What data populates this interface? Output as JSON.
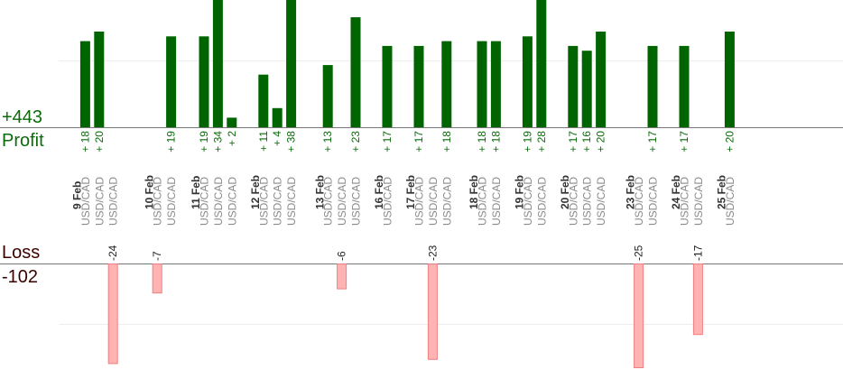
{
  "summary": {
    "profit_total": "+443",
    "profit_label": "Profit",
    "loss_label": "Loss",
    "loss_total": "-102"
  },
  "colors": {
    "profit_bar": "#006400",
    "profit_text": "#0b6b0b",
    "loss_bar_fill": "#ffb3b3",
    "loss_bar_stroke": "#f08080",
    "date_text": "#333333",
    "pair_text": "#8a8a8a",
    "grid": "#eeeeee",
    "axis": "#777777"
  },
  "chart_data": {
    "type": "bar",
    "pair": "USD/CAD",
    "days": [
      {
        "date": "9 Feb",
        "trades": [
          {
            "v": 18
          },
          {
            "v": 20
          },
          {
            "v": -24
          }
        ]
      },
      {
        "date": "10 Feb",
        "trades": [
          {
            "v": -7
          },
          {
            "v": 19
          }
        ]
      },
      {
        "date": "11 Feb",
        "trades": [
          {
            "v": 19
          },
          {
            "v": 34
          },
          {
            "v": 2
          }
        ]
      },
      {
        "date": "12 Feb",
        "trades": [
          {
            "v": 11
          },
          {
            "v": 4
          },
          {
            "v": 38
          }
        ]
      },
      {
        "date": "13 Feb",
        "trades": [
          {
            "v": 13
          },
          {
            "v": -6
          },
          {
            "v": 23
          }
        ]
      },
      {
        "date": "16 Feb",
        "trades": [
          {
            "v": 17
          }
        ]
      },
      {
        "date": "17 Feb",
        "trades": [
          {
            "v": 17
          },
          {
            "v": -23
          },
          {
            "v": 18
          }
        ]
      },
      {
        "date": "18 Feb",
        "trades": [
          {
            "v": 18
          },
          {
            "v": 18
          }
        ]
      },
      {
        "date": "19 Feb",
        "trades": [
          {
            "v": 19
          },
          {
            "v": 28
          }
        ]
      },
      {
        "date": "20 Feb",
        "trades": [
          {
            "v": 17
          },
          {
            "v": 16
          },
          {
            "v": 20
          }
        ]
      },
      {
        "date": "23 Feb",
        "trades": [
          {
            "v": -25
          },
          {
            "v": 17
          }
        ]
      },
      {
        "date": "24 Feb",
        "trades": [
          {
            "v": 17
          },
          {
            "v": -17
          }
        ]
      },
      {
        "date": "25 Feb",
        "trades": [
          {
            "v": 20
          }
        ]
      }
    ]
  }
}
